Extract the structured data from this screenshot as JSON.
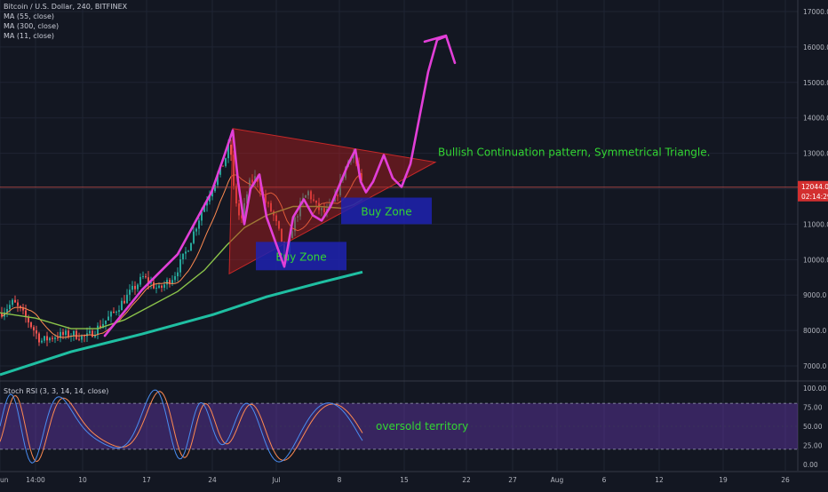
{
  "chart_data": [
    {
      "type": "candlestick",
      "title": "Bitcoin / U.S. Dollar, 240, BITFINEX",
      "legend": [
        "MA (55, close)",
        "MA (300, close)",
        "MA (11, close)"
      ],
      "y_ticks": [
        "17000.0",
        "16000.0",
        "15000.0",
        "14000.0",
        "13000.0",
        "12000.0",
        "11000.0",
        "10000.0",
        "9000.0",
        "8000.0",
        "7000.0"
      ],
      "y_tick_values": [
        17000,
        16000,
        15000,
        14000,
        13000,
        12000,
        11000,
        10000,
        9000,
        8000,
        7000
      ],
      "ylim": [
        6600,
        17200
      ],
      "price_tag": {
        "value": "12044.0",
        "level": 12044,
        "countdown": "02:14:29"
      },
      "annotations": [
        {
          "text": "Bullish Continuation pattern, Symmetrical Triangle."
        },
        {
          "text": "Buy Zone",
          "range": [
            9700,
            10500
          ]
        },
        {
          "text": "Buy Zone",
          "range": [
            11000,
            11750
          ]
        }
      ],
      "colors": {
        "up": "#26a69a",
        "down": "#ef5350",
        "ma55": "#8bc34a",
        "ma300": "#1fbfa2",
        "ma11": "#ff8a50",
        "drawing": "#e23fd8",
        "triangle": "#b71c1c",
        "buy_zone": "#1e22b0",
        "annotation_text": "#33d633"
      }
    },
    {
      "type": "line",
      "title": "Stoch RSI (3, 3, 14, 14, close)",
      "y_ticks": [
        "100.00",
        "75.00",
        "50.00",
        "25.00",
        "0.00"
      ],
      "y_tick_values": [
        100,
        75,
        50,
        25,
        0
      ],
      "ylim": [
        -8,
        108
      ],
      "bands": [
        20,
        80
      ],
      "annotation": "oversold territory",
      "colors": {
        "k": "#4a8df2",
        "d": "#ff8a50",
        "band": "#7b3fd1"
      }
    }
  ],
  "x_ticks": [
    "un",
    "14:00",
    "10",
    "17",
    "24",
    "Jul",
    "8",
    "15",
    "22",
    "27",
    "Aug",
    "6",
    "12",
    "19",
    "26"
  ]
}
